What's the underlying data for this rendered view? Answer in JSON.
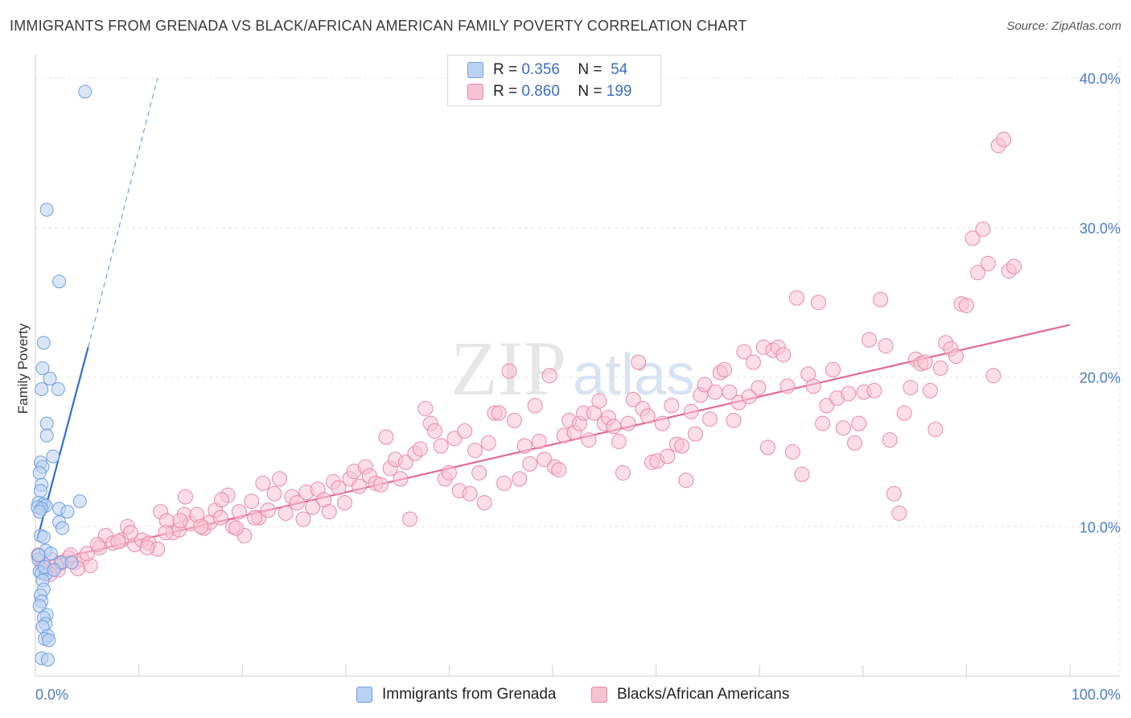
{
  "title": "IMMIGRANTS FROM GRENADA VS BLACK/AFRICAN AMERICAN FAMILY POVERTY CORRELATION CHART",
  "source": "Source: ZipAtlas.com",
  "watermark": {
    "zip": "ZIP",
    "atlas": "atlas"
  },
  "legend": {
    "r_label": "R =",
    "n_label": "N =",
    "series": [
      {
        "r": "0.356",
        "n": "54",
        "color": "#6f9fe0",
        "fill": "#b9d1f3"
      },
      {
        "r": "0.860",
        "n": "199",
        "color": "#e889a6",
        "fill": "#f7c3d3"
      }
    ]
  },
  "bottom_legend": [
    {
      "label": "Immigrants from Grenada",
      "fill": "#b9d1f3",
      "stroke": "#6f9fe0"
    },
    {
      "label": "Blacks/African Americans",
      "fill": "#f7c3d3",
      "stroke": "#e889a6"
    }
  ],
  "chart_data": {
    "type": "scatter",
    "title": "IMMIGRANTS FROM GRENADA VS BLACK/AFRICAN AMERICAN FAMILY POVERTY CORRELATION CHART",
    "xlabel": "",
    "ylabel": "Family Poverty",
    "xlim": [
      0,
      100
    ],
    "ylim": [
      0,
      42
    ],
    "x_tick_labels": [
      "0.0%",
      "100.0%"
    ],
    "y_ticks": [
      10,
      20,
      30,
      40
    ],
    "y_tick_labels": [
      "10.0%",
      "20.0%",
      "30.0%",
      "40.0%"
    ],
    "series": [
      {
        "name": "Immigrants from Grenada",
        "color": "#6f9fe0",
        "fill": "#b9d1f3",
        "trend": {
          "x": [
            0.2,
            5.1
          ],
          "y": [
            9.2,
            22.0
          ],
          "dashed_to": [
            11.8,
            40.0
          ]
        },
        "points": [
          [
            4.8,
            39.1
          ],
          [
            1.1,
            31.2
          ],
          [
            2.3,
            26.4
          ],
          [
            0.8,
            22.3
          ],
          [
            0.7,
            20.6
          ],
          [
            1.4,
            19.9
          ],
          [
            0.6,
            19.2
          ],
          [
            2.2,
            19.2
          ],
          [
            1.1,
            16.9
          ],
          [
            1.1,
            16.1
          ],
          [
            1.7,
            14.7
          ],
          [
            0.5,
            14.3
          ],
          [
            0.7,
            14.0
          ],
          [
            0.4,
            13.6
          ],
          [
            0.6,
            12.8
          ],
          [
            0.5,
            12.4
          ],
          [
            0.3,
            11.6
          ],
          [
            0.8,
            11.5
          ],
          [
            1.0,
            11.4
          ],
          [
            0.2,
            11.3
          ],
          [
            0.6,
            11.2
          ],
          [
            0.4,
            11.0
          ],
          [
            2.3,
            11.2
          ],
          [
            3.1,
            11.0
          ],
          [
            4.3,
            11.7
          ],
          [
            2.3,
            10.3
          ],
          [
            2.6,
            9.9
          ],
          [
            0.5,
            9.4
          ],
          [
            0.8,
            9.3
          ],
          [
            1.0,
            8.4
          ],
          [
            1.5,
            8.2
          ],
          [
            0.3,
            7.8
          ],
          [
            2.5,
            7.6
          ],
          [
            3.5,
            7.6
          ],
          [
            0.4,
            7.0
          ],
          [
            0.6,
            6.9
          ],
          [
            1.0,
            6.8
          ],
          [
            0.7,
            6.4
          ],
          [
            0.8,
            5.8
          ],
          [
            0.5,
            5.4
          ],
          [
            0.6,
            5.0
          ],
          [
            0.4,
            4.7
          ],
          [
            1.1,
            4.1
          ],
          [
            0.8,
            3.9
          ],
          [
            1.0,
            3.5
          ],
          [
            0.7,
            3.3
          ],
          [
            1.2,
            2.7
          ],
          [
            0.9,
            2.5
          ],
          [
            1.3,
            2.4
          ],
          [
            0.6,
            1.2
          ],
          [
            1.2,
            1.1
          ],
          [
            0.3,
            8.1
          ],
          [
            0.9,
            7.3
          ],
          [
            1.8,
            7.1
          ]
        ]
      },
      {
        "name": "Blacks/African Americans",
        "color": "#e889a6",
        "fill": "#f7c3d3",
        "trend": {
          "x": [
            0.0,
            100.0
          ],
          "y": [
            7.5,
            23.5
          ]
        },
        "points": [
          [
            0.3,
            8.1
          ],
          [
            0.6,
            7.6
          ],
          [
            1.0,
            7.2
          ],
          [
            1.5,
            7.8
          ],
          [
            2.2,
            7.1
          ],
          [
            2.5,
            7.6
          ],
          [
            3.2,
            7.9
          ],
          [
            3.8,
            7.6
          ],
          [
            4.5,
            7.8
          ],
          [
            5.3,
            7.4
          ],
          [
            6.2,
            8.6
          ],
          [
            6.8,
            9.4
          ],
          [
            7.5,
            8.9
          ],
          [
            8.3,
            9.1
          ],
          [
            8.9,
            10.0
          ],
          [
            9.6,
            8.8
          ],
          [
            10.3,
            9.1
          ],
          [
            11.0,
            8.9
          ],
          [
            11.8,
            8.5
          ],
          [
            12.1,
            11.0
          ],
          [
            12.7,
            10.4
          ],
          [
            13.3,
            9.6
          ],
          [
            13.9,
            9.8
          ],
          [
            14.4,
            10.8
          ],
          [
            14.5,
            12.0
          ],
          [
            15.0,
            10.2
          ],
          [
            15.6,
            10.8
          ],
          [
            16.3,
            9.9
          ],
          [
            16.9,
            10.3
          ],
          [
            17.4,
            11.1
          ],
          [
            17.9,
            10.6
          ],
          [
            18.6,
            12.1
          ],
          [
            19.1,
            10.0
          ],
          [
            19.7,
            11.0
          ],
          [
            20.2,
            9.4
          ],
          [
            20.9,
            11.7
          ],
          [
            21.6,
            10.6
          ],
          [
            22.0,
            12.9
          ],
          [
            22.5,
            11.1
          ],
          [
            23.1,
            12.2
          ],
          [
            23.6,
            13.2
          ],
          [
            24.2,
            10.9
          ],
          [
            24.8,
            12.0
          ],
          [
            25.3,
            11.6
          ],
          [
            25.9,
            10.5
          ],
          [
            26.2,
            12.3
          ],
          [
            26.8,
            11.3
          ],
          [
            27.3,
            12.5
          ],
          [
            27.9,
            11.8
          ],
          [
            28.4,
            11.0
          ],
          [
            28.8,
            13.0
          ],
          [
            29.3,
            12.6
          ],
          [
            29.9,
            11.6
          ],
          [
            30.4,
            13.2
          ],
          [
            30.8,
            13.7
          ],
          [
            31.3,
            12.7
          ],
          [
            31.9,
            14.0
          ],
          [
            32.3,
            13.4
          ],
          [
            32.9,
            12.9
          ],
          [
            33.4,
            12.8
          ],
          [
            33.9,
            16.0
          ],
          [
            34.3,
            13.9
          ],
          [
            34.8,
            14.5
          ],
          [
            35.3,
            13.2
          ],
          [
            35.8,
            14.3
          ],
          [
            36.2,
            10.5
          ],
          [
            36.7,
            14.9
          ],
          [
            37.2,
            15.2
          ],
          [
            37.7,
            17.9
          ],
          [
            38.2,
            16.9
          ],
          [
            38.6,
            16.4
          ],
          [
            39.2,
            15.4
          ],
          [
            39.6,
            13.2
          ],
          [
            40.0,
            13.6
          ],
          [
            40.5,
            15.9
          ],
          [
            41.0,
            12.4
          ],
          [
            41.5,
            16.4
          ],
          [
            42.0,
            12.2
          ],
          [
            42.5,
            15.1
          ],
          [
            42.9,
            13.6
          ],
          [
            43.4,
            11.6
          ],
          [
            43.8,
            15.6
          ],
          [
            44.4,
            17.6
          ],
          [
            44.8,
            17.6
          ],
          [
            45.3,
            12.9
          ],
          [
            45.8,
            20.4
          ],
          [
            46.3,
            17.1
          ],
          [
            46.8,
            13.2
          ],
          [
            47.3,
            15.4
          ],
          [
            47.8,
            14.2
          ],
          [
            48.3,
            18.1
          ],
          [
            48.7,
            15.7
          ],
          [
            49.2,
            14.5
          ],
          [
            49.7,
            20.1
          ],
          [
            50.2,
            14.0
          ],
          [
            50.6,
            13.8
          ],
          [
            51.1,
            16.1
          ],
          [
            51.6,
            17.1
          ],
          [
            52.1,
            16.3
          ],
          [
            52.6,
            16.9
          ],
          [
            53.0,
            17.6
          ],
          [
            53.5,
            15.8
          ],
          [
            54.0,
            17.6
          ],
          [
            54.5,
            18.4
          ],
          [
            55.0,
            16.9
          ],
          [
            55.4,
            17.3
          ],
          [
            55.9,
            16.7
          ],
          [
            56.4,
            15.7
          ],
          [
            56.8,
            13.6
          ],
          [
            57.3,
            16.9
          ],
          [
            57.8,
            18.5
          ],
          [
            58.3,
            21.0
          ],
          [
            58.7,
            17.9
          ],
          [
            59.2,
            17.4
          ],
          [
            59.6,
            14.3
          ],
          [
            60.1,
            14.4
          ],
          [
            60.6,
            16.9
          ],
          [
            61.1,
            14.7
          ],
          [
            61.5,
            18.1
          ],
          [
            62.0,
            15.5
          ],
          [
            62.5,
            15.4
          ],
          [
            62.9,
            13.1
          ],
          [
            63.4,
            17.7
          ],
          [
            63.8,
            16.2
          ],
          [
            64.3,
            18.8
          ],
          [
            64.7,
            19.5
          ],
          [
            65.2,
            17.2
          ],
          [
            65.7,
            19.0
          ],
          [
            66.2,
            20.3
          ],
          [
            66.6,
            20.5
          ],
          [
            67.1,
            19.0
          ],
          [
            67.5,
            17.1
          ],
          [
            68.0,
            18.3
          ],
          [
            68.5,
            21.7
          ],
          [
            69.0,
            18.7
          ],
          [
            69.4,
            21.0
          ],
          [
            69.9,
            19.3
          ],
          [
            70.4,
            22.0
          ],
          [
            70.8,
            15.3
          ],
          [
            71.3,
            21.8
          ],
          [
            71.8,
            22.0
          ],
          [
            72.3,
            21.5
          ],
          [
            72.7,
            19.4
          ],
          [
            73.2,
            15.0
          ],
          [
            73.6,
            25.3
          ],
          [
            74.1,
            13.5
          ],
          [
            74.7,
            20.2
          ],
          [
            75.2,
            19.4
          ],
          [
            75.7,
            25.0
          ],
          [
            76.1,
            16.9
          ],
          [
            76.5,
            18.1
          ],
          [
            77.1,
            20.5
          ],
          [
            77.5,
            18.6
          ],
          [
            78.1,
            16.6
          ],
          [
            78.6,
            18.9
          ],
          [
            79.2,
            15.6
          ],
          [
            79.6,
            16.9
          ],
          [
            80.1,
            19.0
          ],
          [
            80.6,
            22.5
          ],
          [
            81.1,
            19.1
          ],
          [
            81.7,
            25.2
          ],
          [
            82.2,
            22.1
          ],
          [
            82.6,
            15.8
          ],
          [
            83.0,
            12.2
          ],
          [
            83.5,
            10.9
          ],
          [
            84.0,
            17.6
          ],
          [
            84.6,
            19.3
          ],
          [
            85.1,
            21.2
          ],
          [
            85.6,
            20.9
          ],
          [
            86.0,
            21.0
          ],
          [
            86.5,
            19.1
          ],
          [
            87.0,
            16.5
          ],
          [
            87.5,
            20.6
          ],
          [
            88.0,
            22.3
          ],
          [
            88.5,
            21.9
          ],
          [
            89.0,
            21.4
          ],
          [
            89.5,
            24.9
          ],
          [
            90.0,
            24.8
          ],
          [
            90.6,
            29.3
          ],
          [
            91.1,
            27.0
          ],
          [
            91.6,
            29.9
          ],
          [
            92.1,
            27.6
          ],
          [
            92.6,
            20.1
          ],
          [
            93.1,
            35.5
          ],
          [
            93.6,
            35.9
          ],
          [
            94.1,
            27.1
          ],
          [
            94.6,
            27.4
          ],
          [
            5.0,
            8.2
          ],
          [
            4.1,
            7.2
          ],
          [
            3.4,
            8.1
          ],
          [
            2.0,
            7.4
          ],
          [
            1.4,
            6.8
          ],
          [
            6.0,
            8.8
          ],
          [
            8.0,
            9.0
          ],
          [
            9.2,
            9.6
          ],
          [
            10.8,
            8.6
          ],
          [
            12.6,
            9.6
          ],
          [
            14.0,
            10.4
          ],
          [
            16.0,
            10.0
          ],
          [
            18.0,
            11.8
          ],
          [
            19.4,
            9.9
          ],
          [
            21.2,
            10.6
          ]
        ]
      }
    ]
  }
}
